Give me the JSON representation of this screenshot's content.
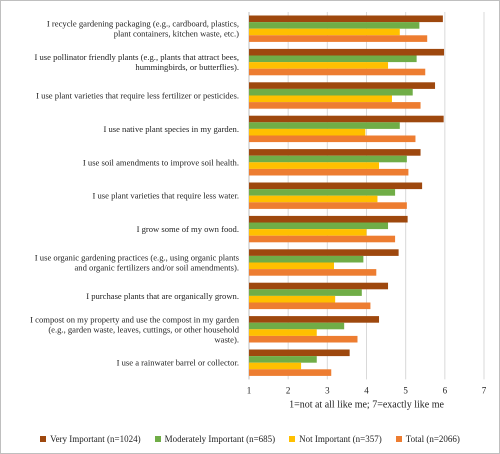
{
  "chart_data": {
    "type": "bar",
    "orientation": "horizontal",
    "title": "",
    "xlabel": "1=not at all like me; 7=exactly like me",
    "ylabel": "",
    "xlim": [
      1,
      7
    ],
    "xticks": [
      "1",
      "2",
      "3",
      "4",
      "5",
      "6",
      "7"
    ],
    "grid": true,
    "legend_position": "bottom",
    "categories": [
      [
        "I recycle gardening packaging (e.g., cardboard, plastics,",
        "plant containers, kitchen waste, etc.)"
      ],
      [
        "I use pollinator friendly plants (e.g., plants that attract bees,",
        "hummingbirds, or butterflies)."
      ],
      [
        "I use plant varieties that require less fertilizer or pesticides."
      ],
      [
        "I use native plant species in my garden."
      ],
      [
        "I use soil amendments to improve soil health."
      ],
      [
        "I use plant varieties that require less water."
      ],
      [
        "I grow some of my own food."
      ],
      [
        "I use organic gardening practices (e.g., using organic plants",
        "and organic fertilizers and/or soil amendments)."
      ],
      [
        "I purchase plants that are organically grown."
      ],
      [
        "I compost on my property and use the compost in my garden",
        "(e.g., garden waste, leaves, cuttings, or other household",
        "waste)."
      ],
      [
        "I use a rainwater barrel or collector."
      ]
    ],
    "series": [
      {
        "name": "Very Important (n=1024)",
        "color": "#9e480e",
        "values": [
          5.95,
          5.98,
          5.75,
          5.97,
          5.38,
          5.42,
          5.05,
          4.82,
          4.55,
          4.32,
          3.57
        ]
      },
      {
        "name": "Moderately Important (n=685)",
        "color": "#70ad47",
        "values": [
          5.35,
          5.28,
          5.18,
          4.85,
          5.03,
          4.73,
          4.55,
          3.92,
          3.88,
          3.43,
          2.73
        ]
      },
      {
        "name": "Not Important (n=357)",
        "color": "#ffc000",
        "values": [
          4.85,
          4.55,
          4.65,
          3.97,
          4.32,
          4.28,
          4.0,
          3.17,
          3.2,
          2.73,
          2.33
        ]
      },
      {
        "name": "Total (n=2066)",
        "color": "#ed7d31",
        "values": [
          5.55,
          5.5,
          5.38,
          5.25,
          5.07,
          5.03,
          4.73,
          4.25,
          4.1,
          3.77,
          3.1
        ]
      }
    ]
  }
}
